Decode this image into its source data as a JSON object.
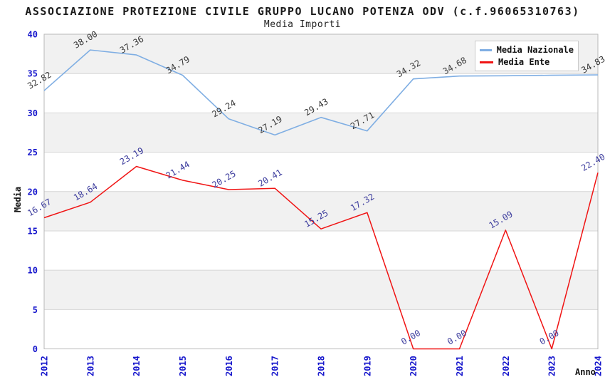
{
  "chart_data": {
    "type": "line",
    "title": "ASSOCIAZIONE PROTEZIONE CIVILE GRUPPO LUCANO POTENZA ODV (c.f.96065310763)",
    "subtitle": "Media Importi",
    "xlabel": "Anno",
    "ylabel": "Media",
    "x": [
      "2012",
      "2013",
      "2014",
      "2015",
      "2016",
      "2017",
      "2018",
      "2019",
      "2020",
      "2021",
      "2022",
      "2023",
      "2024"
    ],
    "ylim": [
      0,
      40
    ],
    "ytick_step": 5,
    "yticks": [
      "0",
      "5",
      "10",
      "15",
      "20",
      "25",
      "30",
      "35",
      "40"
    ],
    "grid": "horizontal",
    "legend_position": "top-right",
    "series": [
      {
        "name": "Media Nazionale",
        "color": "#7FAEE3",
        "label_color": "#3a3a3a",
        "values": [
          32.82,
          38.0,
          37.36,
          34.79,
          29.24,
          27.19,
          29.43,
          27.71,
          34.32,
          34.68,
          34.72,
          34.78,
          34.83
        ],
        "labels": [
          "32.82",
          "38.00",
          "37.36",
          "34.79",
          "29.24",
          "27.19",
          "29.43",
          "27.71",
          "34.32",
          "34.68",
          "",
          "",
          "34.83"
        ]
      },
      {
        "name": "Media Ente",
        "color": "#F01414",
        "label_color": "#3B3B9D",
        "values": [
          16.67,
          18.64,
          23.19,
          21.44,
          20.25,
          20.41,
          15.25,
          17.32,
          0.0,
          0.0,
          15.09,
          0.0,
          22.4
        ],
        "labels": [
          "16.67",
          "18.64",
          "23.19",
          "21.44",
          "20.25",
          "20.41",
          "15.25",
          "17.32",
          "0.00",
          "0.00",
          "15.09",
          "0.00",
          "22.40"
        ]
      }
    ],
    "colors": {
      "band_fill": "#F1F1F1",
      "gridline": "#D6D6D6",
      "plot_border": "#B9B9B9",
      "tick_label": "#1616CC",
      "title_text": "#1a1a1a"
    }
  }
}
